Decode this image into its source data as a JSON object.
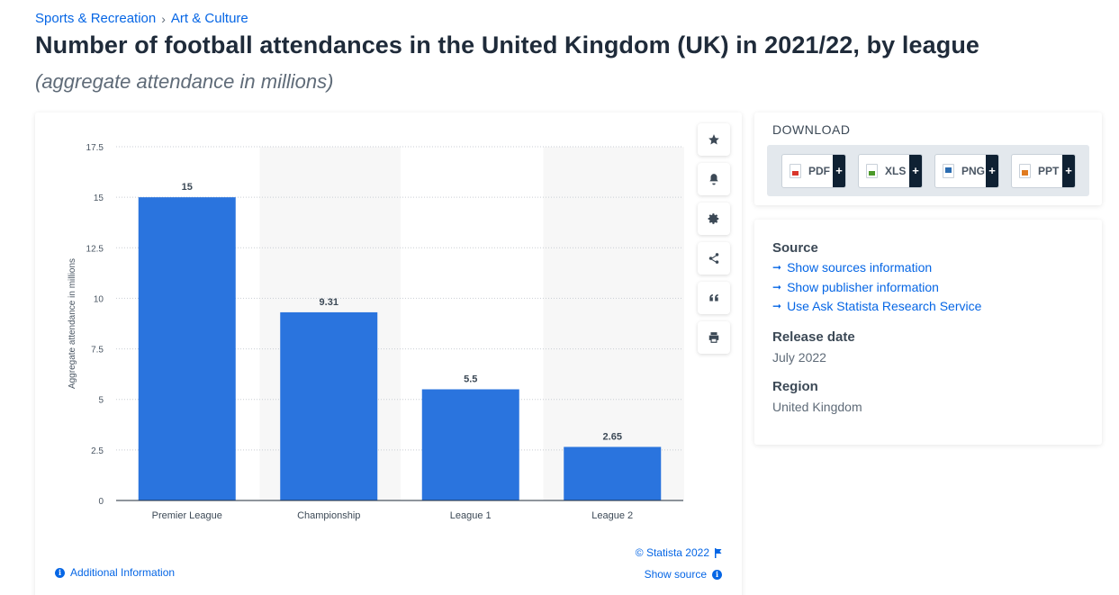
{
  "breadcrumb": [
    "Sports & Recreation",
    "Art & Culture"
  ],
  "title": "Number of football attendances in the United Kingdom (UK) in 2021/22, by league",
  "subtitle": "(aggregate attendance in millions)",
  "chart_data": {
    "type": "bar",
    "categories": [
      "Premier League",
      "Championship",
      "League 1",
      "League 2"
    ],
    "values": [
      15,
      9.31,
      5.5,
      2.65
    ],
    "value_labels": [
      "15",
      "9.31",
      "5.5",
      "2.65"
    ],
    "ylabel": "Aggregate attendance in millions",
    "ylim": [
      0,
      17.5
    ],
    "yticks": [
      "0",
      "2.5",
      "5",
      "7.5",
      "10",
      "12.5",
      "15",
      "17.5"
    ],
    "bar_color": "#2a74de",
    "grid": true
  },
  "chart_footer": {
    "copyright": "© Statista 2022",
    "show_source": "Show source",
    "additional_info": "Additional Information"
  },
  "toolbar": {
    "icons": [
      "star-icon",
      "bell-icon",
      "gear-icon",
      "share-icon",
      "quote-icon",
      "print-icon"
    ]
  },
  "download": {
    "title": "DOWNLOAD",
    "buttons": [
      {
        "label": "PDF",
        "color": "#d9362b"
      },
      {
        "label": "XLS",
        "color": "#4b9a2a"
      },
      {
        "label": "PNG",
        "color": "#2b6cb0"
      },
      {
        "label": "PPT",
        "color": "#e07b1f"
      }
    ],
    "plus": "+"
  },
  "info": {
    "source_heading": "Source",
    "links": [
      "Show sources information",
      "Show publisher information",
      "Use Ask Statista Research Service"
    ],
    "release_heading": "Release date",
    "release_value": "July 2022",
    "region_heading": "Region",
    "region_value": "United Kingdom"
  }
}
